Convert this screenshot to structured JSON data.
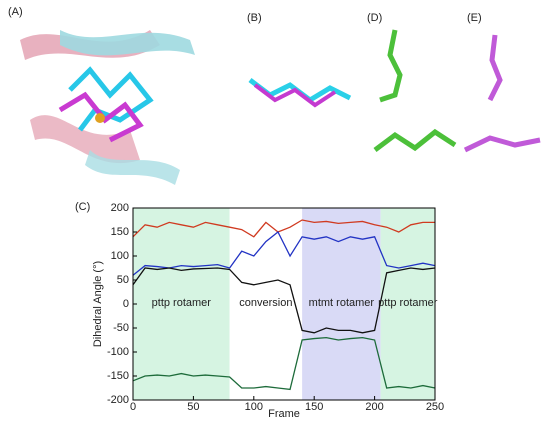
{
  "panels": {
    "a": "(A)",
    "b": "(B)",
    "c": "(C)",
    "d": "(D)",
    "e": "(E)"
  },
  "chart_data": {
    "type": "line",
    "xlabel": "Frame",
    "ylabel": "Dihedral Angle (°)",
    "xlim": [
      0,
      250
    ],
    "ylim": [
      -200,
      200
    ],
    "xticks": [
      0,
      50,
      100,
      150,
      200,
      250
    ],
    "yticks": [
      -200,
      -150,
      -100,
      -50,
      0,
      50,
      100,
      150,
      200
    ],
    "regions": [
      {
        "start": 0,
        "end": 80,
        "label": "pttp rotamer",
        "color": "#d6f4e2"
      },
      {
        "start": 80,
        "end": 140,
        "label": "conversion",
        "color": "#ffffff"
      },
      {
        "start": 140,
        "end": 205,
        "label": "mtmt rotamer",
        "color": "#d9daf6"
      },
      {
        "start": 205,
        "end": 250,
        "label": "pttp rotamer",
        "color": "#d6f4e2"
      }
    ],
    "x": [
      0,
      10,
      20,
      30,
      40,
      50,
      60,
      70,
      80,
      90,
      100,
      110,
      120,
      130,
      140,
      150,
      160,
      170,
      180,
      190,
      200,
      210,
      220,
      230,
      240,
      250
    ],
    "series": [
      {
        "color": "#d03a20",
        "values": [
          140,
          165,
          160,
          170,
          165,
          160,
          170,
          165,
          160,
          155,
          140,
          170,
          150,
          160,
          175,
          170,
          172,
          168,
          170,
          172,
          165,
          160,
          150,
          165,
          170,
          170
        ]
      },
      {
        "color": "#2233c4",
        "values": [
          60,
          80,
          78,
          75,
          80,
          78,
          80,
          82,
          75,
          110,
          100,
          130,
          150,
          100,
          140,
          135,
          140,
          130,
          140,
          135,
          140,
          80,
          75,
          80,
          85,
          80
        ]
      },
      {
        "color": "#111111",
        "values": [
          40,
          75,
          72,
          75,
          70,
          73,
          74,
          75,
          72,
          45,
          40,
          45,
          50,
          40,
          -55,
          -60,
          -50,
          -55,
          -55,
          -60,
          -55,
          65,
          70,
          75,
          72,
          75
        ]
      },
      {
        "color": "#1d6b3a",
        "values": [
          -160,
          -150,
          -148,
          -150,
          -145,
          -150,
          -148,
          -150,
          -152,
          -175,
          -175,
          -172,
          -175,
          -178,
          -75,
          -72,
          -70,
          -75,
          -72,
          -70,
          -75,
          -175,
          -172,
          -175,
          -170,
          -175
        ]
      }
    ]
  }
}
